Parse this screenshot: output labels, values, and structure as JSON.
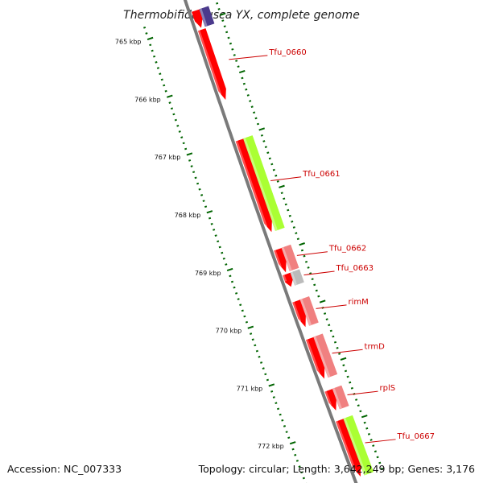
{
  "header": {
    "title": "Thermobifida fusca YX, complete genome"
  },
  "footer": {
    "accession": "Accession: NC_007333",
    "topology": "Topology: circular; Length: 3,642,249 bp; Genes: 3,176"
  },
  "scale": {
    "unit_suffix": " kbp",
    "ticks": [
      765,
      766,
      767,
      768,
      769,
      770,
      771,
      772
    ]
  },
  "colors": {
    "backbone": "#7a7a7a",
    "gene_red": "#ff0000",
    "gene_pink": "#f08080",
    "gene_green": "#aaff33",
    "gene_purple": "#4b3a8c",
    "gene_gray": "#bbbbbb",
    "tick_green": "#006400",
    "label_red": "#cc0000"
  },
  "genes": [
    {
      "label": "Tfu_0660",
      "start": 765.13,
      "end": 766.35,
      "color": "red"
    },
    {
      "label": "Tfu_0661",
      "start": 767.05,
      "end": 768.65,
      "color": "red"
    },
    {
      "label": "Tfu_0662",
      "start": 768.95,
      "end": 769.35,
      "color": "red"
    },
    {
      "label": "Tfu_0663",
      "start": 769.38,
      "end": 769.6,
      "color": "red"
    },
    {
      "label": "rimM",
      "start": 769.85,
      "end": 770.3,
      "color": "red"
    },
    {
      "label": "trmD",
      "start": 770.5,
      "end": 771.2,
      "color": "red"
    },
    {
      "label": "rplS",
      "start": 771.4,
      "end": 771.75,
      "color": "red"
    },
    {
      "label": "Tfu_0667",
      "start": 771.92,
      "end": 772.9,
      "color": "red"
    }
  ],
  "features": [
    {
      "start": 764.8,
      "end": 765.1,
      "color": "purple"
    },
    {
      "start": 767.05,
      "end": 768.65,
      "color": "green"
    },
    {
      "start": 768.95,
      "end": 769.35,
      "color": "pink"
    },
    {
      "start": 769.38,
      "end": 769.6,
      "color": "gray"
    },
    {
      "start": 769.85,
      "end": 770.3,
      "color": "pink"
    },
    {
      "start": 770.5,
      "end": 771.2,
      "color": "pink"
    },
    {
      "start": 771.4,
      "end": 771.75,
      "color": "pink"
    },
    {
      "start": 771.92,
      "end": 772.9,
      "color": "green"
    }
  ],
  "partial_genes": [
    {
      "start": 764.8,
      "end": 765.1,
      "color": "red"
    }
  ]
}
